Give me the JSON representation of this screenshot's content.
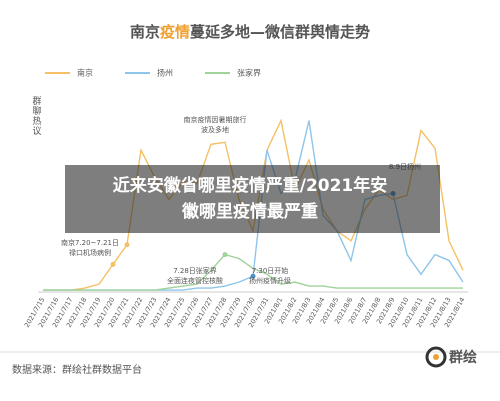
{
  "chart_data": {
    "type": "line",
    "title_segments": [
      {
        "text": "南京",
        "color": "#555555"
      },
      {
        "text": "疫情",
        "color": "#f0a030"
      },
      {
        "text": "蔓延多地—微信群舆情走势",
        "color": "#555555"
      }
    ],
    "y_label": "群聊热议",
    "categories": [
      "2021/7/15",
      "2021/7/16",
      "2021/7/17",
      "2021/7/18",
      "2021/7/19",
      "2021/7/20",
      "2021/7/21",
      "2021/7/22",
      "2021/7/23",
      "2021/7/24",
      "2021/7/25",
      "2021/7/26",
      "2021/7/27",
      "2021/7/28",
      "2021/7/29",
      "2021/7/30",
      "2021/7/31",
      "2021/8/1",
      "2021/8/2",
      "2021/8/3",
      "2021/8/4",
      "2021/8/5",
      "2021/8/6",
      "2021/8/7",
      "2021/8/8",
      "2021/8/9",
      "2021/8/10",
      "2021/8/11",
      "2021/8/12",
      "2021/8/13",
      "2021/8/14"
    ],
    "series": [
      {
        "name": "南京",
        "color": "#f5c065",
        "values": [
          1,
          1,
          1,
          2,
          4,
          14,
          24,
          72,
          58,
          47,
          56,
          55,
          75,
          76,
          47,
          31,
          72,
          87,
          52,
          67,
          42,
          31,
          26,
          42,
          52,
          47,
          49,
          82,
          73,
          26,
          11
        ]
      },
      {
        "name": "扬州",
        "color": "#8ec5ea",
        "values": [
          1,
          1,
          1,
          1,
          1,
          1,
          1,
          1,
          1,
          1,
          1,
          2,
          2,
          3,
          5,
          8,
          72,
          50,
          57,
          87,
          39,
          31,
          16,
          47,
          49,
          50,
          19,
          9,
          19,
          16,
          5
        ]
      },
      {
        "name": "张家界",
        "color": "#9fd39a",
        "values": [
          1,
          1,
          1,
          1,
          1,
          1,
          1,
          1,
          1,
          2,
          3,
          4,
          11,
          19,
          17,
          12,
          9,
          4,
          5,
          3,
          3,
          2,
          2,
          2,
          2,
          2,
          2,
          2,
          2,
          2,
          2
        ]
      }
    ],
    "ylim": [
      0,
      100
    ],
    "annotations": [
      {
        "lines": [
          "南京疫情因暑期旅行",
          "波及多地"
        ]
      },
      {
        "lines": [
          "8.9日扬州"
        ]
      },
      {
        "lines": [
          "南京7.20~7.21日",
          "禄口机场病例"
        ]
      },
      {
        "lines": [
          "7.28日张家界",
          "全面连夜管控核酸"
        ]
      },
      {
        "lines": [
          "7.30日开始",
          "扬州疫情升级"
        ]
      }
    ]
  },
  "banner": [
    "近来安徽省哪里疫情严重/2021年安",
    "徽哪里疫情最严重"
  ],
  "source": "数据来源：群绘社群数据平台",
  "logo": "群绘"
}
